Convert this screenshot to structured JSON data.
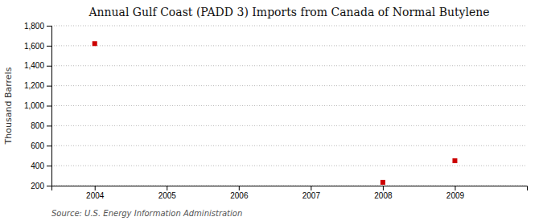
{
  "chart_data": {
    "type": "scatter",
    "title": "Annual Gulf Coast (PADD 3) Imports from Canada of Normal Butylene",
    "ylabel": "Thousand Barrels",
    "source": "Source: U.S. Energy Information Administration",
    "x": [
      2004,
      2008,
      2009
    ],
    "values": [
      1621,
      233,
      449
    ],
    "color": "#cc0000",
    "marker": "square",
    "xlim": [
      2003.4,
      2010.0
    ],
    "xticks": [
      2004,
      2005,
      2006,
      2007,
      2008,
      2009
    ],
    "ylim": [
      200,
      1800
    ],
    "yticks": [
      200,
      400,
      600,
      800,
      {
        "value": 1000,
        "label": "1,000"
      },
      {
        "value": 1200,
        "label": "1,200"
      },
      {
        "value": 1400,
        "label": "1,400"
      },
      {
        "value": 1600,
        "label": "1,600"
      },
      {
        "value": 1800,
        "label": "1,800"
      }
    ],
    "grid": "y"
  }
}
